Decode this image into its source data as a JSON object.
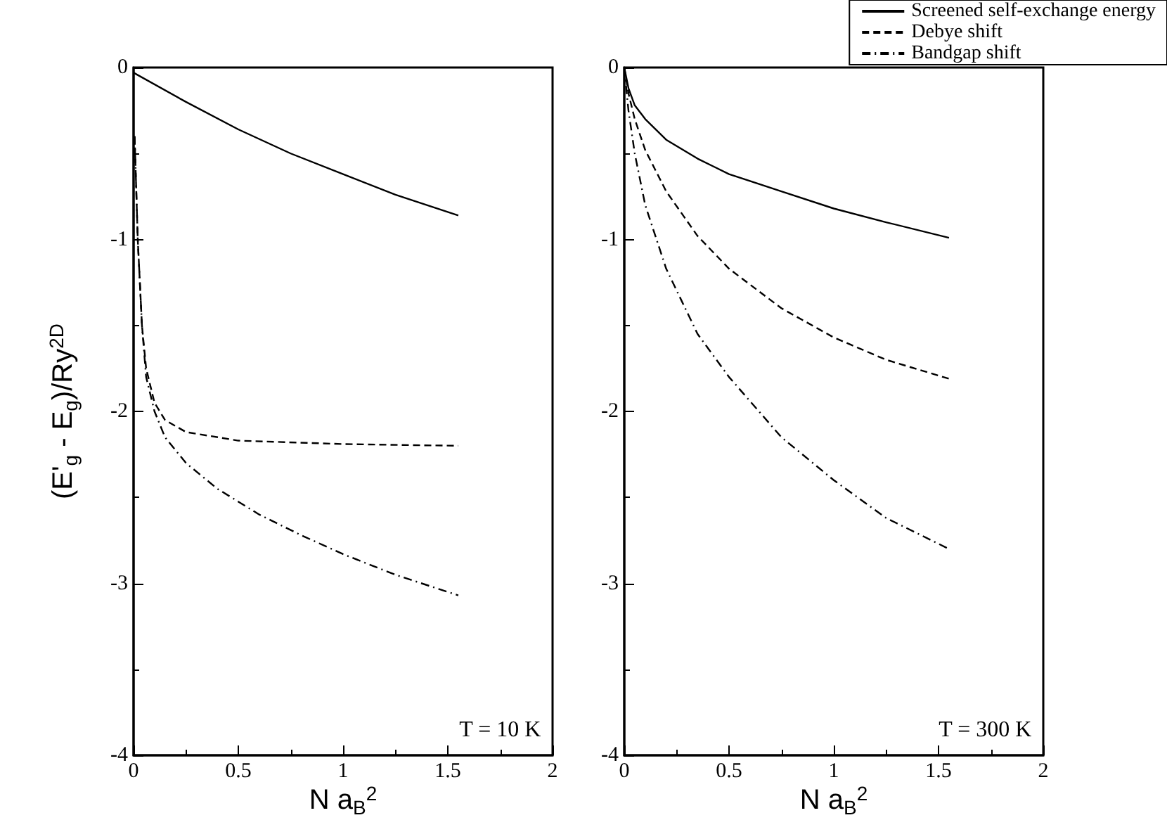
{
  "chart_data": [
    {
      "type": "line",
      "xlabel": "N a$_{B}$$^{2}$",
      "ylabel": "(E'$_{g}$ - E$_{g}$)/Ry$^{2D}$",
      "xlim": [
        0,
        2
      ],
      "xticks": [
        0,
        0.5,
        1,
        1.5,
        2
      ],
      "ylim": [
        -4,
        0
      ],
      "yticks": [
        -4,
        -3,
        -2,
        -1,
        0
      ],
      "grid": false,
      "legend": false,
      "annotations": [
        "T = 10 K"
      ],
      "series": [
        {
          "color": "#000000",
          "line_style": "solid",
          "x": [
            0,
            0.25,
            0.5,
            0.75,
            1,
            1.25,
            1.55
          ],
          "values": [
            -0.03,
            -0.2,
            -0.36,
            -0.5,
            -0.62,
            -0.74,
            -0.86
          ]
        },
        {
          "color": "#000000",
          "line_style": "dashed",
          "x": [
            0.005,
            0.02,
            0.04,
            0.06,
            0.1,
            0.15,
            0.25,
            0.5,
            1,
            1.55
          ],
          "values": [
            -0.4,
            -1.0,
            -1.5,
            -1.75,
            -1.95,
            -2.05,
            -2.12,
            -2.17,
            -2.19,
            -2.2
          ]
        },
        {
          "color": "#000000",
          "line_style": "dashdot",
          "x": [
            0.005,
            0.02,
            0.04,
            0.06,
            0.1,
            0.15,
            0.25,
            0.4,
            0.6,
            0.8,
            1,
            1.25,
            1.55
          ],
          "values": [
            -0.4,
            -1.0,
            -1.5,
            -1.8,
            -2.0,
            -2.15,
            -2.3,
            -2.45,
            -2.6,
            -2.72,
            -2.83,
            -2.95,
            -3.07
          ]
        }
      ]
    },
    {
      "type": "line",
      "xlabel": "N a$_{B}$$^{2}$",
      "xlim": [
        0,
        2
      ],
      "xticks": [
        0,
        0.5,
        1,
        1.5,
        2
      ],
      "ylim": [
        -4,
        0
      ],
      "yticks": [
        -4,
        -3,
        -2,
        -1,
        0
      ],
      "grid": false,
      "legend": "top right",
      "annotations": [
        "T = 300 K"
      ],
      "series": [
        {
          "name": "Screened self-exchange energy",
          "color": "#000000",
          "line_style": "solid",
          "x": [
            0,
            0.02,
            0.05,
            0.1,
            0.2,
            0.35,
            0.5,
            0.75,
            1,
            1.25,
            1.55
          ],
          "values": [
            0,
            -0.12,
            -0.22,
            -0.3,
            -0.42,
            -0.53,
            -0.62,
            -0.72,
            -0.82,
            -0.9,
            -0.99
          ]
        },
        {
          "name": "Debye shift",
          "color": "#000000",
          "line_style": "dashed",
          "x": [
            0,
            0.02,
            0.05,
            0.1,
            0.2,
            0.35,
            0.5,
            0.75,
            1,
            1.25,
            1.55
          ],
          "values": [
            0,
            -0.15,
            -0.3,
            -0.48,
            -0.72,
            -0.98,
            -1.17,
            -1.4,
            -1.57,
            -1.7,
            -1.81
          ]
        },
        {
          "name": "Bandgap shift",
          "color": "#000000",
          "line_style": "dashdot",
          "x": [
            0,
            0.02,
            0.05,
            0.1,
            0.2,
            0.35,
            0.5,
            0.75,
            1,
            1.25,
            1.55
          ],
          "values": [
            0,
            -0.25,
            -0.5,
            -0.8,
            -1.17,
            -1.55,
            -1.8,
            -2.15,
            -2.4,
            -2.62,
            -2.8
          ]
        }
      ]
    }
  ]
}
